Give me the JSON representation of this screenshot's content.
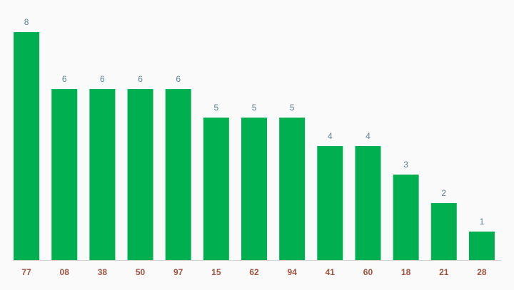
{
  "chart_data": {
    "type": "bar",
    "categories": [
      "77",
      "08",
      "38",
      "50",
      "97",
      "15",
      "62",
      "94",
      "41",
      "60",
      "18",
      "21",
      "28"
    ],
    "values": [
      8,
      6,
      6,
      6,
      6,
      5,
      5,
      5,
      4,
      4,
      3,
      2,
      1
    ],
    "color": "#00b050"
  }
}
